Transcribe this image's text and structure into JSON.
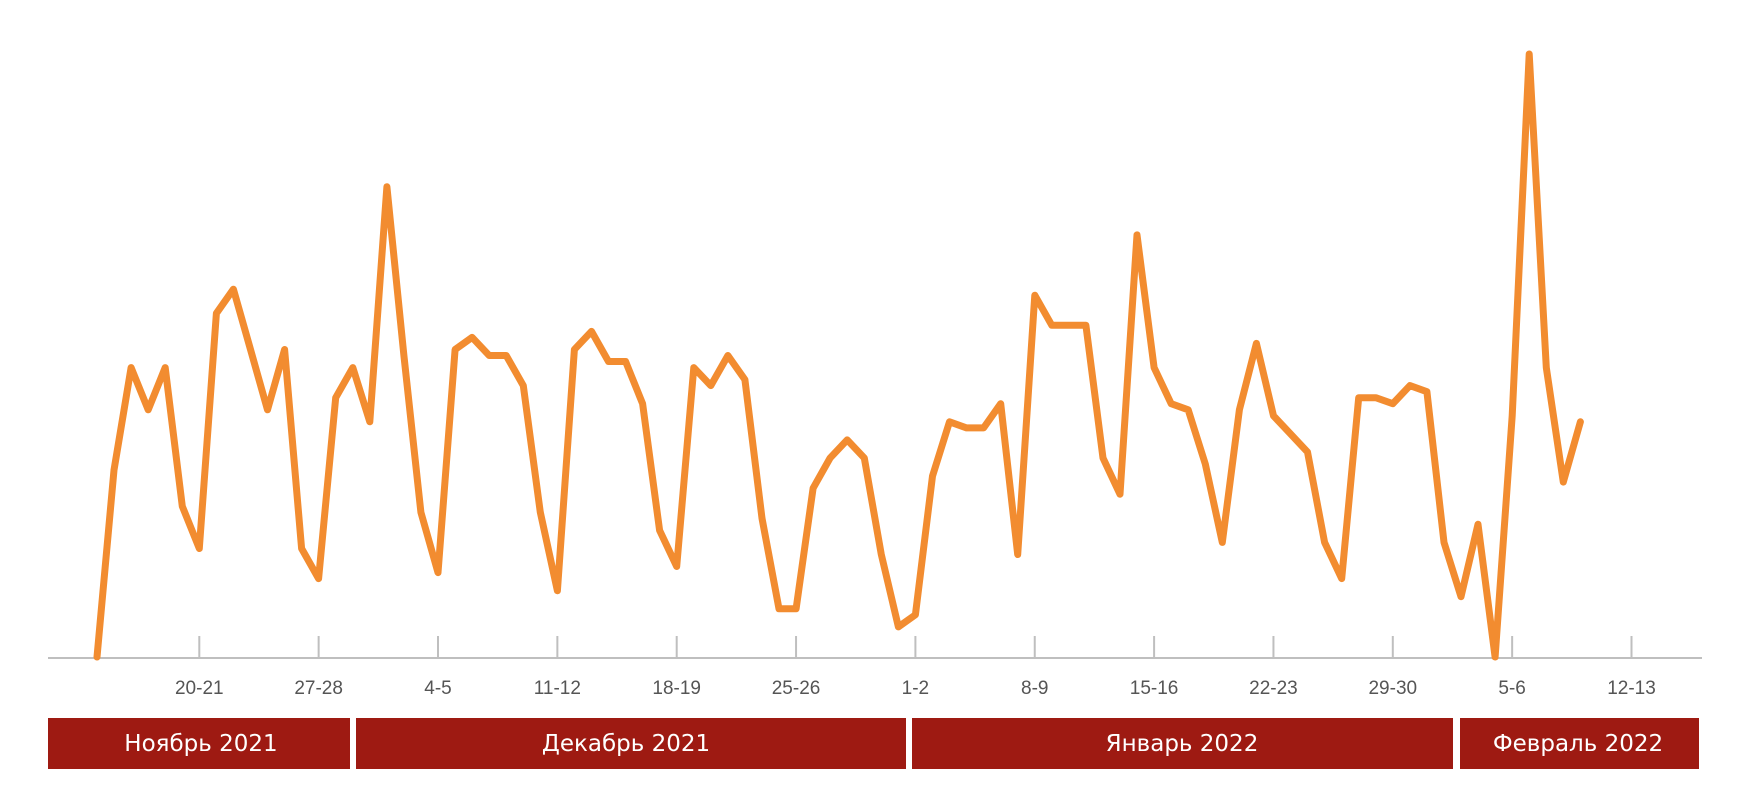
{
  "chart_data": {
    "type": "line",
    "title": "",
    "xlabel": "",
    "ylabel": "",
    "x_tick_labels": [
      "20-21",
      "27-28",
      "4-5",
      "11-12",
      "18-19",
      "25-26",
      "1-2",
      "8-9",
      "15-16",
      "22-23",
      "29-30",
      "5-6",
      "12-13"
    ],
    "x_tick_index": [
      6,
      13,
      20,
      27,
      34,
      41,
      48,
      55,
      62,
      69,
      76,
      83,
      90
    ],
    "month_labels": [
      "Ноябрь 2021",
      "Декабрь 2021",
      "Январь 2022",
      "Февраль 2022"
    ],
    "grid": false,
    "y_axis_visible": false,
    "y_range": [
      0,
      100
    ],
    "line_color": "#f28c30",
    "axis_color": "#bfbfbf",
    "month_band_color": "#9e1a12",
    "series": [
      {
        "values": [
          0,
          31,
          48,
          41,
          48,
          25,
          18,
          57,
          61,
          51,
          41,
          51,
          18,
          13,
          43,
          48,
          39,
          78,
          50,
          24,
          14,
          51,
          53,
          50,
          50,
          45,
          24,
          11,
          51,
          54,
          49,
          49,
          42,
          21,
          15,
          48,
          45,
          50,
          46,
          23,
          8,
          8,
          28,
          33,
          36,
          33,
          17,
          5,
          7,
          30,
          39,
          38,
          38,
          42,
          17,
          60,
          55,
          55,
          55,
          33,
          27,
          70,
          48,
          42,
          41,
          32,
          19,
          41,
          52,
          40,
          37,
          34,
          19,
          13,
          43,
          43,
          42,
          45,
          44,
          19,
          10,
          22,
          0,
          40,
          100,
          48,
          29,
          39
        ]
      }
    ]
  },
  "month_band": [
    {
      "label": "Ноябрь 2021"
    },
    {
      "label": "Декабрь 2021"
    },
    {
      "label": "Январь 2022"
    },
    {
      "label": "Февраль 2022"
    }
  ]
}
